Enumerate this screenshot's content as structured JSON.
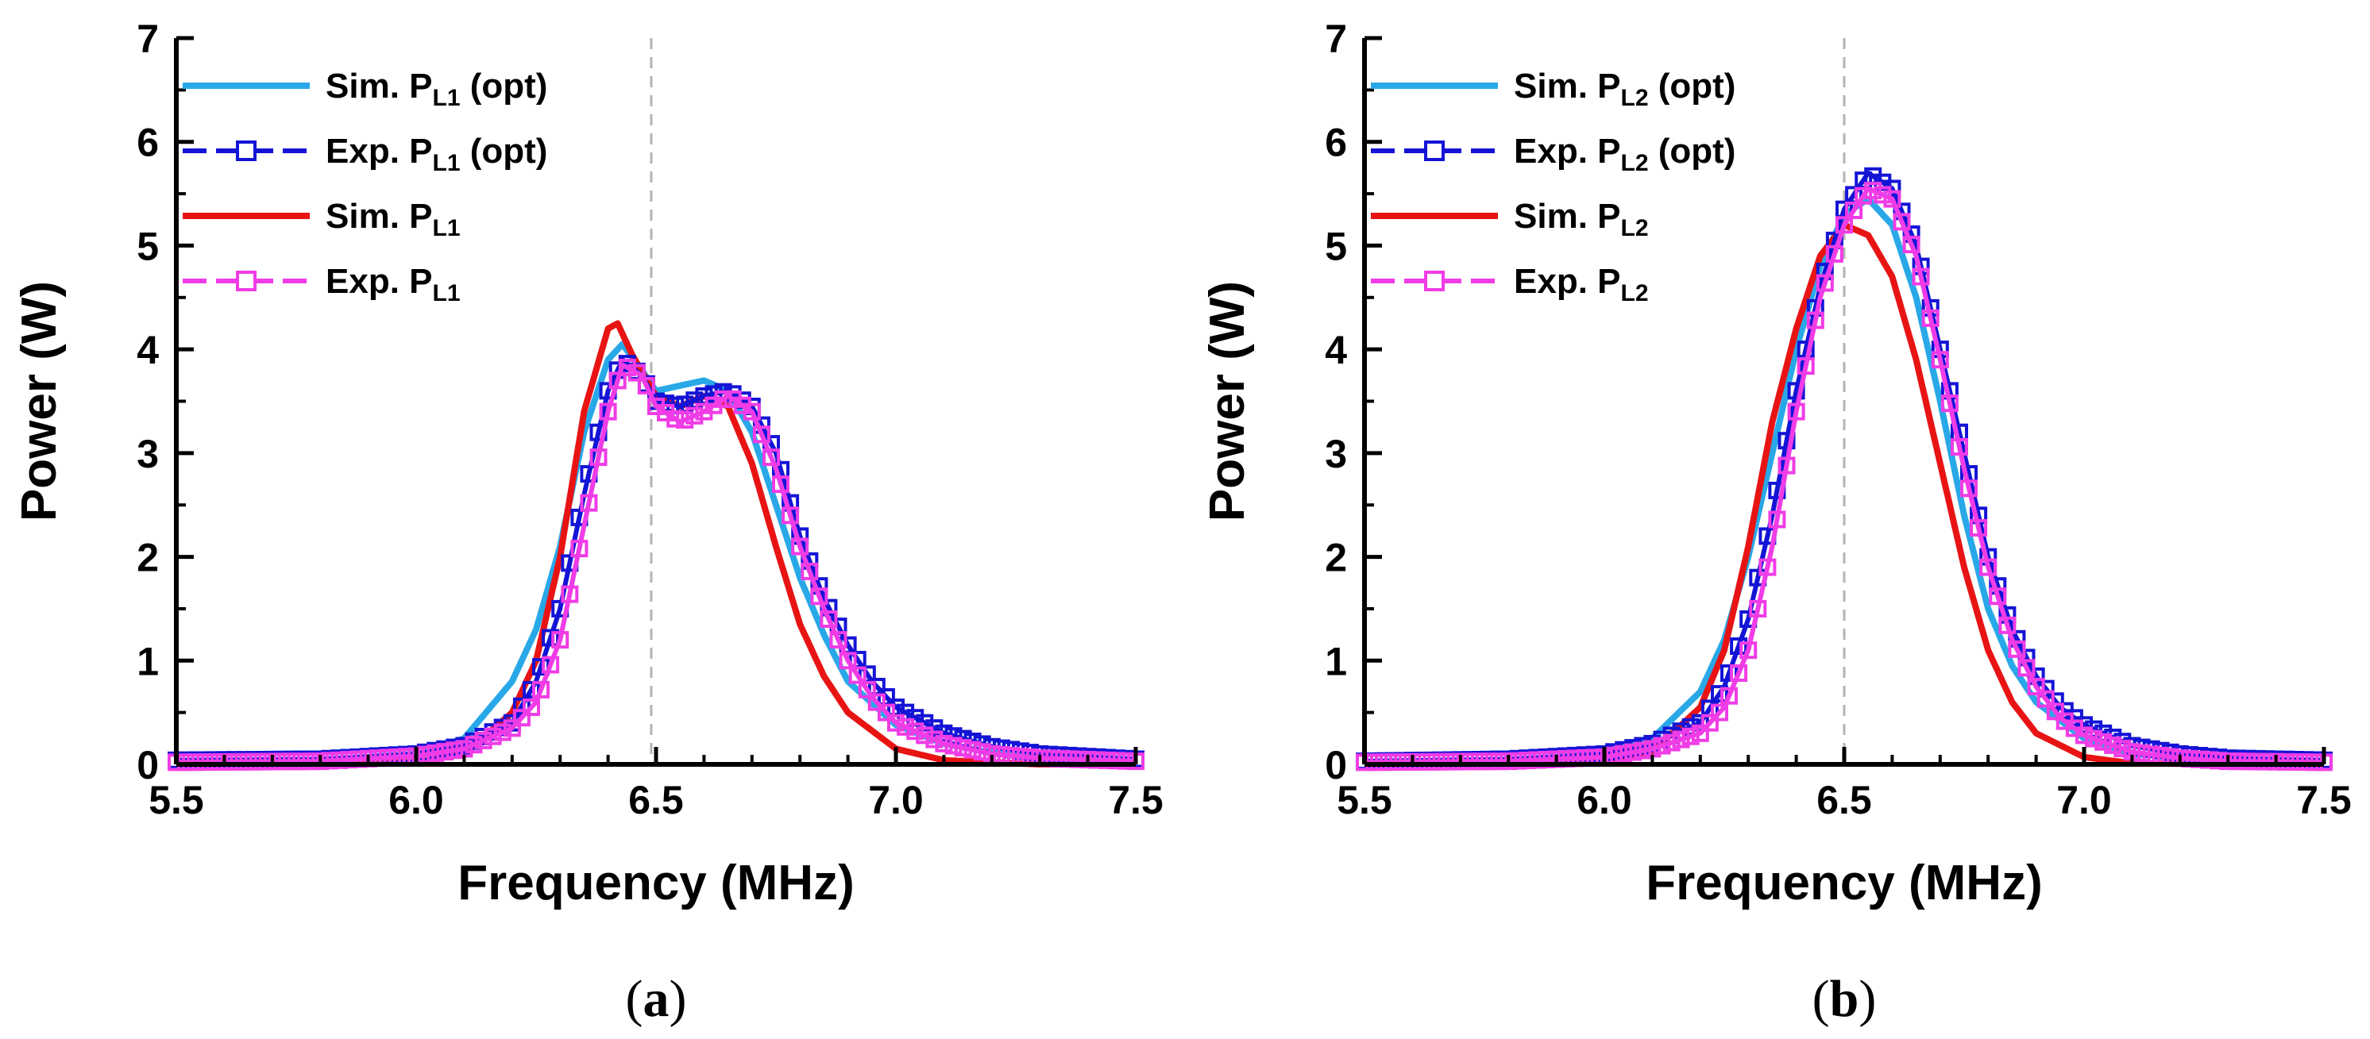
{
  "colors": {
    "sim_opt": "#29a8e8",
    "exp_opt": "#1414d6",
    "sim": "#e81414",
    "exp": "#f03ce6",
    "guide": "#b4b4b4",
    "axis": "#000000"
  },
  "chart_data": [
    {
      "type": "line",
      "panel_label": "a",
      "xlabel": "Frequency (MHz)",
      "ylabel": "Power (W)",
      "xlim": [
        5.5,
        7.5
      ],
      "ylim": [
        0,
        7
      ],
      "xticks": [
        "5.5",
        "6.0",
        "6.5",
        "7.0",
        "7.5"
      ],
      "yticks": [
        "0",
        "1",
        "2",
        "3",
        "4",
        "5",
        "6",
        "7"
      ],
      "grid": false,
      "legend_position": "top-left",
      "vertical_guide_x": 6.49,
      "legend": [
        {
          "main": "Sim. P",
          "sub": "L1",
          "suffix": " (opt)",
          "series": 0
        },
        {
          "main": "Exp. P",
          "sub": "L1",
          "suffix": " (opt)",
          "series": 1
        },
        {
          "main": "Sim. P",
          "sub": "L1",
          "suffix": "",
          "series": 2
        },
        {
          "main": "Exp. P",
          "sub": "L1",
          "suffix": "",
          "series": 3
        }
      ],
      "series": [
        {
          "style": "line",
          "color_key": "sim_opt",
          "points": [
            [
              5.5,
              0.02
            ],
            [
              5.8,
              0.04
            ],
            [
              6.0,
              0.1
            ],
            [
              6.1,
              0.25
            ],
            [
              6.2,
              0.8
            ],
            [
              6.25,
              1.3
            ],
            [
              6.3,
              2.1
            ],
            [
              6.35,
              3.2
            ],
            [
              6.4,
              3.9
            ],
            [
              6.43,
              4.05
            ],
            [
              6.47,
              3.8
            ],
            [
              6.5,
              3.6
            ],
            [
              6.55,
              3.65
            ],
            [
              6.6,
              3.7
            ],
            [
              6.65,
              3.6
            ],
            [
              6.7,
              3.2
            ],
            [
              6.75,
              2.5
            ],
            [
              6.8,
              1.8
            ],
            [
              6.85,
              1.25
            ],
            [
              6.9,
              0.8
            ],
            [
              7.0,
              0.38
            ],
            [
              7.1,
              0.2
            ],
            [
              7.2,
              0.11
            ],
            [
              7.3,
              0.07
            ],
            [
              7.5,
              0.04
            ]
          ]
        },
        {
          "style": "line-marker",
          "color_key": "exp_opt",
          "points": [
            [
              5.5,
              0.04
            ],
            [
              5.8,
              0.05
            ],
            [
              6.0,
              0.1
            ],
            [
              6.1,
              0.18
            ],
            [
              6.2,
              0.4
            ],
            [
              6.25,
              0.8
            ],
            [
              6.3,
              1.5
            ],
            [
              6.35,
              2.6
            ],
            [
              6.4,
              3.6
            ],
            [
              6.43,
              3.9
            ],
            [
              6.47,
              3.75
            ],
            [
              6.5,
              3.5
            ],
            [
              6.55,
              3.45
            ],
            [
              6.6,
              3.55
            ],
            [
              6.65,
              3.6
            ],
            [
              6.7,
              3.45
            ],
            [
              6.75,
              3.0
            ],
            [
              6.8,
              2.2
            ],
            [
              6.85,
              1.6
            ],
            [
              6.9,
              1.15
            ],
            [
              6.95,
              0.8
            ],
            [
              7.0,
              0.55
            ],
            [
              7.1,
              0.3
            ],
            [
              7.2,
              0.17
            ],
            [
              7.3,
              0.1
            ],
            [
              7.5,
              0.05
            ]
          ]
        },
        {
          "style": "line",
          "color_key": "sim",
          "points": [
            [
              5.5,
              0.0
            ],
            [
              6.0,
              0.02
            ],
            [
              6.1,
              0.1
            ],
            [
              6.2,
              0.5
            ],
            [
              6.25,
              1.0
            ],
            [
              6.3,
              2.0
            ],
            [
              6.35,
              3.4
            ],
            [
              6.4,
              4.2
            ],
            [
              6.42,
              4.25
            ],
            [
              6.45,
              3.95
            ],
            [
              6.5,
              3.55
            ],
            [
              6.55,
              3.45
            ],
            [
              6.6,
              3.55
            ],
            [
              6.65,
              3.45
            ],
            [
              6.7,
              2.9
            ],
            [
              6.75,
              2.1
            ],
            [
              6.8,
              1.35
            ],
            [
              6.85,
              0.85
            ],
            [
              6.9,
              0.5
            ],
            [
              7.0,
              0.15
            ],
            [
              7.1,
              0.04
            ],
            [
              7.3,
              0.0
            ],
            [
              7.5,
              0.0
            ]
          ]
        },
        {
          "style": "line-marker",
          "color_key": "exp",
          "points": [
            [
              5.5,
              0.02
            ],
            [
              5.8,
              0.03
            ],
            [
              6.0,
              0.08
            ],
            [
              6.1,
              0.15
            ],
            [
              6.2,
              0.35
            ],
            [
              6.25,
              0.6
            ],
            [
              6.3,
              1.2
            ],
            [
              6.35,
              2.3
            ],
            [
              6.4,
              3.4
            ],
            [
              6.43,
              3.85
            ],
            [
              6.47,
              3.75
            ],
            [
              6.5,
              3.45
            ],
            [
              6.55,
              3.3
            ],
            [
              6.6,
              3.4
            ],
            [
              6.65,
              3.55
            ],
            [
              6.7,
              3.4
            ],
            [
              6.75,
              2.85
            ],
            [
              6.8,
              2.1
            ],
            [
              6.85,
              1.5
            ],
            [
              6.9,
              1.0
            ],
            [
              6.95,
              0.65
            ],
            [
              7.0,
              0.4
            ],
            [
              7.1,
              0.2
            ],
            [
              7.2,
              0.1
            ],
            [
              7.3,
              0.06
            ],
            [
              7.5,
              0.03
            ]
          ]
        }
      ]
    },
    {
      "type": "line",
      "panel_label": "b",
      "xlabel": "Frequency (MHz)",
      "ylabel": "Power (W)",
      "xlim": [
        5.5,
        7.5
      ],
      "ylim": [
        0,
        7
      ],
      "xticks": [
        "5.5",
        "6.0",
        "6.5",
        "7.0",
        "7.5"
      ],
      "yticks": [
        "0",
        "1",
        "2",
        "3",
        "4",
        "5",
        "6",
        "7"
      ],
      "grid": false,
      "legend_position": "top-left",
      "vertical_guide_x": 6.5,
      "legend": [
        {
          "main": "Sim. P",
          "sub": "L2",
          "suffix": " (opt)",
          "series": 0
        },
        {
          "main": "Exp. P",
          "sub": "L2",
          "suffix": " (opt)",
          "series": 1
        },
        {
          "main": "Sim. P",
          "sub": "L2",
          "suffix": "",
          "series": 2
        },
        {
          "main": "Exp. P",
          "sub": "L2",
          "suffix": "",
          "series": 3
        }
      ],
      "series": [
        {
          "style": "line",
          "color_key": "sim_opt",
          "points": [
            [
              5.5,
              0.02
            ],
            [
              5.8,
              0.04
            ],
            [
              6.0,
              0.1
            ],
            [
              6.1,
              0.25
            ],
            [
              6.2,
              0.7
            ],
            [
              6.25,
              1.2
            ],
            [
              6.3,
              2.0
            ],
            [
              6.35,
              3.0
            ],
            [
              6.4,
              4.0
            ],
            [
              6.45,
              4.8
            ],
            [
              6.5,
              5.3
            ],
            [
              6.55,
              5.45
            ],
            [
              6.6,
              5.2
            ],
            [
              6.65,
              4.5
            ],
            [
              6.7,
              3.5
            ],
            [
              6.75,
              2.4
            ],
            [
              6.8,
              1.5
            ],
            [
              6.85,
              0.95
            ],
            [
              6.9,
              0.6
            ],
            [
              7.0,
              0.25
            ],
            [
              7.1,
              0.1
            ],
            [
              7.3,
              0.04
            ],
            [
              7.5,
              0.02
            ]
          ]
        },
        {
          "style": "line-marker",
          "color_key": "exp_opt",
          "points": [
            [
              5.5,
              0.03
            ],
            [
              5.8,
              0.05
            ],
            [
              6.0,
              0.1
            ],
            [
              6.1,
              0.2
            ],
            [
              6.2,
              0.4
            ],
            [
              6.25,
              0.75
            ],
            [
              6.3,
              1.4
            ],
            [
              6.35,
              2.4
            ],
            [
              6.4,
              3.6
            ],
            [
              6.45,
              4.6
            ],
            [
              6.5,
              5.35
            ],
            [
              6.55,
              5.7
            ],
            [
              6.6,
              5.55
            ],
            [
              6.65,
              5.0
            ],
            [
              6.7,
              4.0
            ],
            [
              6.75,
              3.0
            ],
            [
              6.8,
              2.0
            ],
            [
              6.85,
              1.3
            ],
            [
              6.9,
              0.85
            ],
            [
              6.95,
              0.55
            ],
            [
              7.0,
              0.38
            ],
            [
              7.1,
              0.18
            ],
            [
              7.2,
              0.1
            ],
            [
              7.3,
              0.06
            ],
            [
              7.5,
              0.04
            ]
          ]
        },
        {
          "style": "line",
          "color_key": "sim",
          "points": [
            [
              5.5,
              0.0
            ],
            [
              6.0,
              0.02
            ],
            [
              6.1,
              0.12
            ],
            [
              6.2,
              0.55
            ],
            [
              6.25,
              1.1
            ],
            [
              6.3,
              2.1
            ],
            [
              6.35,
              3.3
            ],
            [
              6.4,
              4.2
            ],
            [
              6.45,
              4.9
            ],
            [
              6.5,
              5.2
            ],
            [
              6.55,
              5.1
            ],
            [
              6.6,
              4.7
            ],
            [
              6.65,
              3.9
            ],
            [
              6.7,
              2.9
            ],
            [
              6.75,
              1.9
            ],
            [
              6.8,
              1.1
            ],
            [
              6.85,
              0.6
            ],
            [
              6.9,
              0.3
            ],
            [
              7.0,
              0.07
            ],
            [
              7.1,
              0.01
            ],
            [
              7.5,
              0.0
            ]
          ]
        },
        {
          "style": "line-marker",
          "color_key": "exp",
          "points": [
            [
              5.5,
              0.02
            ],
            [
              5.8,
              0.03
            ],
            [
              6.0,
              0.07
            ],
            [
              6.1,
              0.15
            ],
            [
              6.2,
              0.3
            ],
            [
              6.25,
              0.55
            ],
            [
              6.3,
              1.1
            ],
            [
              6.35,
              2.1
            ],
            [
              6.4,
              3.4
            ],
            [
              6.45,
              4.5
            ],
            [
              6.5,
              5.2
            ],
            [
              6.55,
              5.55
            ],
            [
              6.6,
              5.45
            ],
            [
              6.65,
              4.9
            ],
            [
              6.7,
              3.9
            ],
            [
              6.75,
              2.85
            ],
            [
              6.8,
              1.9
            ],
            [
              6.85,
              1.2
            ],
            [
              6.9,
              0.75
            ],
            [
              6.95,
              0.45
            ],
            [
              7.0,
              0.28
            ],
            [
              7.1,
              0.12
            ],
            [
              7.2,
              0.06
            ],
            [
              7.3,
              0.03
            ],
            [
              7.5,
              0.02
            ]
          ]
        }
      ]
    }
  ]
}
